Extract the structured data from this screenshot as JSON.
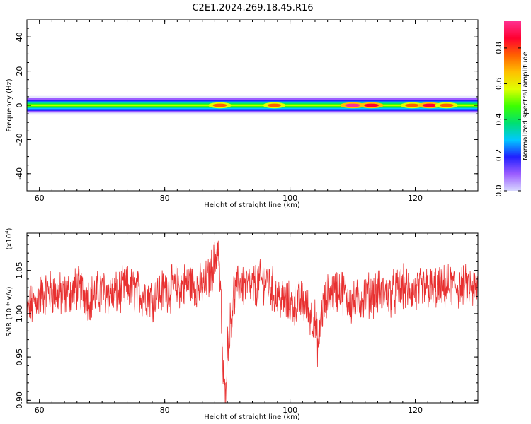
{
  "title": "C2E1.2024.269.18.45.R16",
  "chart_data": [
    {
      "type": "heatmap",
      "xlabel": "Height of straight line (km)",
      "ylabel": "Frequency (Hz)",
      "xlim": [
        58,
        130
      ],
      "ylim": [
        -50,
        50
      ],
      "xticks": [
        "60",
        "80",
        "100",
        "120"
      ],
      "yticks": [
        "-40",
        "-20",
        "0",
        "20",
        "40"
      ],
      "colorbar": {
        "label": "Normalized spectral amplitude",
        "range": [
          0,
          0.95
        ],
        "ticks": [
          "0.0",
          "0.2",
          "0.4",
          "0.6",
          "0.8"
        ],
        "colors": [
          "#d8d8ff",
          "#9b5cff",
          "#2020ff",
          "#00c8ff",
          "#00e070",
          "#3cff00",
          "#e0ff00",
          "#ffc000",
          "#ff6000",
          "#ff0030",
          "#ff3090"
        ]
      },
      "band": {
        "center_hz": 0,
        "halfwidth_hz": 2.5,
        "peaks": [
          {
            "x": 88.8,
            "amplitude": 0.8
          },
          {
            "x": 97.5,
            "amplitude": 0.75
          },
          {
            "x": 110,
            "amplitude": 0.95
          },
          {
            "x": 113,
            "amplitude": 0.9
          },
          {
            "x": 119.5,
            "amplitude": 0.8
          },
          {
            "x": 122.3,
            "amplitude": 0.85
          },
          {
            "x": 125,
            "amplitude": 0.8
          }
        ]
      }
    },
    {
      "type": "line",
      "xlabel": "Height of straight line (km)",
      "ylabel": "SNR (10 * v/v)",
      "yscale_label": "(x10",
      "yscale_exp": "4",
      "xlim": [
        58,
        130
      ],
      "ylim": [
        0.897,
        1.093
      ],
      "xticks": [
        "60",
        "80",
        "100",
        "120"
      ],
      "yticks": [
        "0.90",
        "0.95",
        "1.00",
        "1.05"
      ],
      "color": "#e83030",
      "series": [
        {
          "x": [
            58,
            60,
            62,
            64,
            66,
            68,
            70,
            72,
            74,
            76,
            78,
            80,
            82,
            84,
            86,
            87,
            88,
            88.5,
            89,
            89.3,
            89.6,
            90,
            91,
            92,
            94,
            96,
            98,
            100,
            102,
            104,
            104.5,
            105,
            106,
            108,
            110,
            112,
            114,
            116,
            118,
            120,
            122,
            124,
            126,
            128,
            130
          ],
          "y": [
            1.0,
            1.022,
            1.025,
            1.02,
            1.03,
            1.018,
            1.026,
            1.022,
            1.03,
            1.024,
            1.018,
            1.028,
            1.03,
            1.035,
            1.03,
            1.04,
            1.06,
            1.08,
            1.01,
            0.93,
            0.9,
            0.96,
            1.02,
            1.035,
            1.03,
            1.04,
            1.02,
            1.01,
            1.015,
            0.99,
            0.96,
            1.0,
            1.02,
            1.03,
            1.01,
            1.02,
            1.025,
            1.022,
            1.03,
            1.025,
            1.03,
            1.028,
            1.032,
            1.03,
            1.028
          ]
        }
      ]
    }
  ]
}
